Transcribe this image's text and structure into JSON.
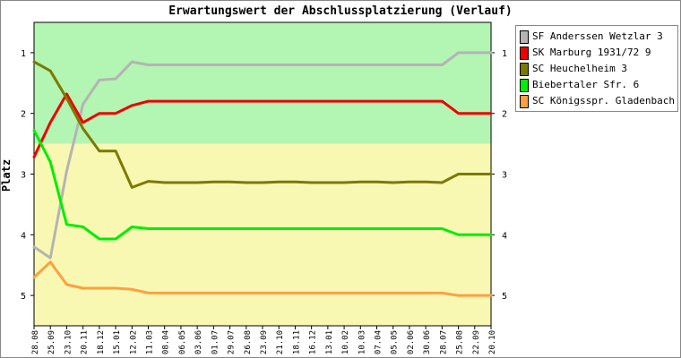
{
  "chart_data": {
    "type": "line",
    "title": "Erwartungswert der Abschlussplatzierung (Verlauf)",
    "ylabel": "Platz",
    "xlabel": "",
    "ylim": [
      0.5,
      5.5
    ],
    "y_ticks": [
      1,
      2,
      3,
      4,
      5
    ],
    "y_reversed": true,
    "grid": false,
    "legend": "right",
    "background_bands": [
      {
        "from": 0.5,
        "to": 2.5,
        "color": "#b3f5b3"
      },
      {
        "from": 2.5,
        "to": 5.5,
        "color": "#f8f8b3"
      }
    ],
    "categories": [
      "28.08",
      "25.09",
      "23.10",
      "20.11",
      "18.12",
      "15.01",
      "12.02",
      "11.03",
      "08.04",
      "06.05",
      "03.06",
      "01.07",
      "29.07",
      "26.08",
      "23.09",
      "21.10",
      "18.11",
      "16.12",
      "13.01",
      "10.02",
      "10.03",
      "07.04",
      "05.05",
      "02.06",
      "30.06",
      "28.07",
      "25.08",
      "22.09",
      "20.10"
    ],
    "series": [
      {
        "name": "SF Anderssen Wetzlar 3",
        "color": "#b4b4b4",
        "values": [
          4.2,
          4.38,
          2.95,
          1.85,
          1.45,
          1.43,
          1.15,
          1.2,
          1.2,
          1.2,
          1.2,
          1.2,
          1.2,
          1.2,
          1.2,
          1.2,
          1.2,
          1.2,
          1.2,
          1.2,
          1.2,
          1.2,
          1.2,
          1.2,
          1.2,
          1.2,
          1.0,
          1.0,
          1.0
        ]
      },
      {
        "name": "SK Marburg 1931/72 9",
        "color": "#ee0000",
        "values": [
          2.72,
          2.15,
          1.68,
          2.15,
          2.0,
          2.0,
          1.87,
          1.8,
          1.8,
          1.8,
          1.8,
          1.8,
          1.8,
          1.8,
          1.8,
          1.8,
          1.8,
          1.8,
          1.8,
          1.8,
          1.8,
          1.8,
          1.8,
          1.8,
          1.8,
          1.8,
          2.0,
          2.0,
          2.0
        ]
      },
      {
        "name": "SC Heuchelheim 3",
        "color": "#7a7a00",
        "values": [
          1.15,
          1.3,
          1.75,
          2.25,
          2.62,
          2.62,
          3.22,
          3.12,
          3.14,
          3.14,
          3.14,
          3.13,
          3.13,
          3.14,
          3.14,
          3.13,
          3.13,
          3.14,
          3.14,
          3.14,
          3.13,
          3.13,
          3.14,
          3.13,
          3.13,
          3.14,
          3.0,
          3.0,
          3.0
        ]
      },
      {
        "name": "Biebertaler Sfr. 6",
        "color": "#00ee00",
        "values": [
          2.28,
          2.8,
          3.83,
          3.87,
          4.07,
          4.07,
          3.87,
          3.9,
          3.9,
          3.9,
          3.9,
          3.9,
          3.9,
          3.9,
          3.9,
          3.9,
          3.9,
          3.9,
          3.9,
          3.9,
          3.9,
          3.9,
          3.9,
          3.9,
          3.9,
          3.9,
          4.0,
          4.0,
          4.0
        ]
      },
      {
        "name": "SC Königsspr. Gladenbach 3",
        "color": "#ffa040",
        "values": [
          4.7,
          4.45,
          4.82,
          4.88,
          4.88,
          4.88,
          4.9,
          4.96,
          4.96,
          4.96,
          4.96,
          4.96,
          4.96,
          4.96,
          4.96,
          4.96,
          4.96,
          4.96,
          4.96,
          4.96,
          4.96,
          4.96,
          4.96,
          4.96,
          4.96,
          4.96,
          5.0,
          5.0,
          5.0
        ]
      }
    ]
  }
}
